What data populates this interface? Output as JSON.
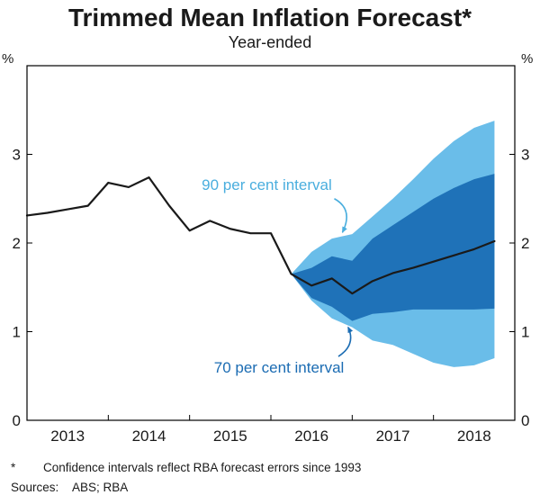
{
  "page": {
    "title": "Trimmed Mean Inflation Forecast*",
    "subtitle": "Year-ended",
    "footnote_marker": "*",
    "footnote_text": "Confidence intervals reflect RBA forecast errors since 1993",
    "sources_label": "Sources:",
    "sources_text": "ABS; RBA"
  },
  "chart_data": {
    "type": "line",
    "title": "Trimmed Mean Inflation Forecast*",
    "subtitle": "Year-ended",
    "unit": "%",
    "xlim": [
      2012.5,
      2018.5
    ],
    "ylim": [
      0,
      4
    ],
    "yticks": [
      0,
      1,
      2,
      3
    ],
    "xticks": [
      2013,
      2014,
      2015,
      2016,
      2017,
      2018
    ],
    "x_minor_ticks": [
      2013.5,
      2014.5,
      2015.5,
      2016.5,
      2017.5
    ],
    "grid": false,
    "line": {
      "name": "Trimmed mean inflation (year-ended, actual and RBA forecast)",
      "color": "#1a1a1a",
      "x": [
        2012.5,
        2012.75,
        2013.0,
        2013.25,
        2013.5,
        2013.75,
        2014.0,
        2014.25,
        2014.5,
        2014.75,
        2015.0,
        2015.25,
        2015.5,
        2015.75,
        2016.0,
        2016.25,
        2016.5,
        2016.75,
        2017.0,
        2017.25,
        2017.5,
        2017.75,
        2018.0,
        2018.25
      ],
      "values": [
        2.31,
        2.34,
        2.38,
        2.42,
        2.68,
        2.63,
        2.74,
        2.42,
        2.14,
        2.25,
        2.16,
        2.11,
        2.11,
        1.65,
        1.52,
        1.6,
        1.43,
        1.57,
        1.66,
        1.72,
        1.79,
        1.86,
        1.93,
        2.02
      ]
    },
    "bands": [
      {
        "name": "90 per cent interval",
        "color": "#6abde9",
        "x": [
          2015.75,
          2016.0,
          2016.25,
          2016.5,
          2016.75,
          2017.0,
          2017.25,
          2017.5,
          2017.75,
          2018.0,
          2018.25
        ],
        "upper": [
          1.65,
          1.9,
          2.05,
          2.1,
          2.3,
          2.5,
          2.72,
          2.95,
          3.15,
          3.3,
          3.38
        ],
        "lower": [
          1.65,
          1.35,
          1.15,
          1.05,
          0.9,
          0.85,
          0.75,
          0.65,
          0.6,
          0.62,
          0.7
        ]
      },
      {
        "name": "70 per cent interval",
        "color": "#1f72b8",
        "x": [
          2015.75,
          2016.0,
          2016.25,
          2016.5,
          2016.75,
          2017.0,
          2017.25,
          2017.5,
          2017.75,
          2018.0,
          2018.25
        ],
        "upper": [
          1.65,
          1.72,
          1.85,
          1.8,
          2.05,
          2.2,
          2.35,
          2.5,
          2.62,
          2.72,
          2.78
        ],
        "lower": [
          1.65,
          1.38,
          1.28,
          1.12,
          1.2,
          1.22,
          1.25,
          1.25,
          1.25,
          1.25,
          1.26
        ]
      }
    ],
    "annotations": [
      {
        "text": "90 per cent interval",
        "color": "#4aaede",
        "text_x": 2015.45,
        "text_y": 2.66,
        "arrow": {
          "from": [
            2016.28,
            2.5
          ],
          "ctrl": [
            2016.52,
            2.38
          ],
          "to": [
            2016.38,
            2.12
          ]
        }
      },
      {
        "text": "70 per cent interval",
        "color": "#1b6cb3",
        "text_x": 2015.6,
        "text_y": 0.6,
        "arrow": {
          "from": [
            2016.33,
            0.72
          ],
          "ctrl": [
            2016.55,
            0.85
          ],
          "to": [
            2016.45,
            1.05
          ]
        }
      }
    ]
  }
}
